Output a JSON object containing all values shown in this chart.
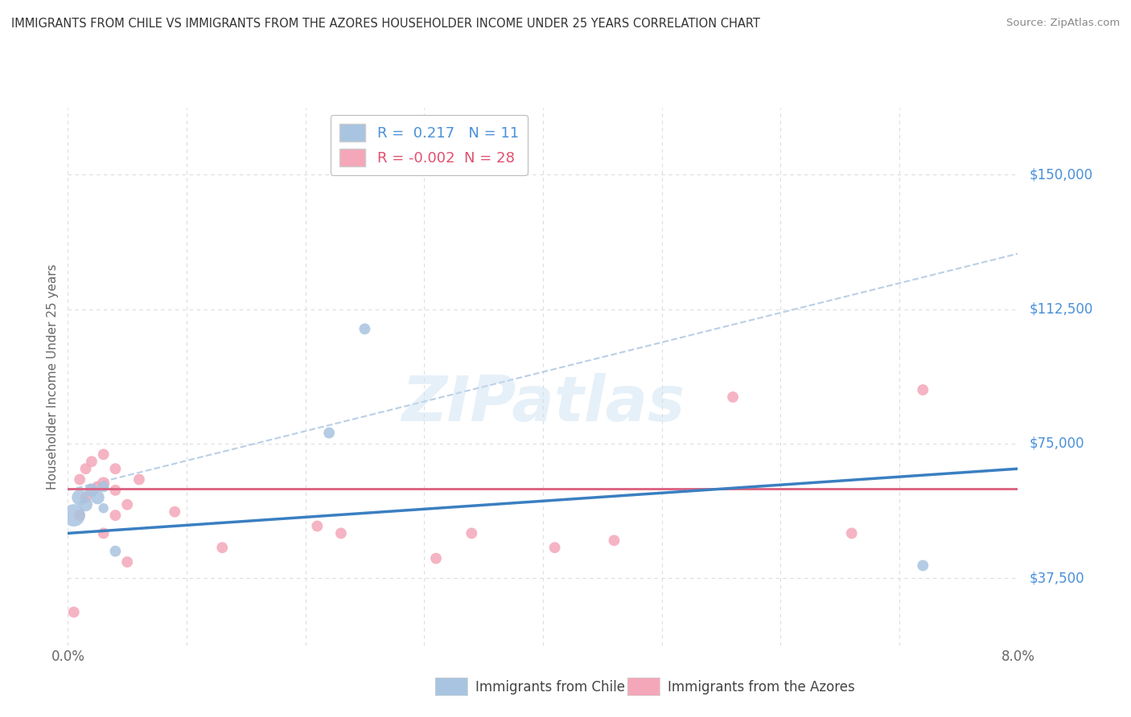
{
  "title": "IMMIGRANTS FROM CHILE VS IMMIGRANTS FROM THE AZORES HOUSEHOLDER INCOME UNDER 25 YEARS CORRELATION CHART",
  "source": "Source: ZipAtlas.com",
  "ylabel": "Householder Income Under 25 years",
  "xlim": [
    0.0,
    0.08
  ],
  "ylim": [
    18750,
    168750
  ],
  "yticks": [
    37500,
    75000,
    112500,
    150000
  ],
  "ytick_labels": [
    "$37,500",
    "$75,000",
    "$112,500",
    "$150,000"
  ],
  "xticks": [
    0.0,
    0.01,
    0.02,
    0.03,
    0.04,
    0.05,
    0.06,
    0.07,
    0.08
  ],
  "xtick_labels": [
    "0.0%",
    "",
    "",
    "",
    "",
    "",
    "",
    "",
    "8.0%"
  ],
  "r_chile": 0.217,
  "n_chile": 11,
  "r_azores": -0.002,
  "n_azores": 28,
  "color_chile": "#a8c4e0",
  "color_azores": "#f4a7b9",
  "line_chile_color": "#3a7fc1",
  "line_azores_color": "#d95f7f",
  "dash_color": "#a8c4e0",
  "background_color": "#ffffff",
  "grid_color": "#dddddd",
  "grid_dash": [
    4,
    4
  ],
  "watermark": "ZIPatlas",
  "chile_line_x": [
    0.0,
    0.08
  ],
  "chile_line_y": [
    50000,
    68000
  ],
  "azores_line_x": [
    0.0,
    0.08
  ],
  "azores_line_y": [
    62500,
    62500
  ],
  "dash_line_x": [
    0.0,
    0.08
  ],
  "dash_line_y": [
    62000,
    128000
  ],
  "chile_points_x": [
    0.0005,
    0.001,
    0.0015,
    0.002,
    0.0025,
    0.003,
    0.003,
    0.004,
    0.022,
    0.025,
    0.072
  ],
  "chile_points_y": [
    55000,
    60000,
    58000,
    62000,
    60000,
    63000,
    57000,
    45000,
    78000,
    107000,
    41000
  ],
  "chile_sizes": [
    400,
    200,
    150,
    150,
    150,
    100,
    80,
    100,
    100,
    100,
    100
  ],
  "azores_points_x": [
    0.0005,
    0.001,
    0.001,
    0.0015,
    0.0015,
    0.002,
    0.002,
    0.0025,
    0.003,
    0.003,
    0.003,
    0.004,
    0.004,
    0.004,
    0.005,
    0.005,
    0.006,
    0.009,
    0.013,
    0.021,
    0.023,
    0.031,
    0.034,
    0.041,
    0.046,
    0.056,
    0.066,
    0.072
  ],
  "azores_points_y": [
    28000,
    55000,
    65000,
    60000,
    68000,
    62000,
    70000,
    63000,
    64000,
    72000,
    50000,
    62000,
    55000,
    68000,
    58000,
    42000,
    65000,
    56000,
    46000,
    52000,
    50000,
    43000,
    50000,
    46000,
    48000,
    88000,
    50000,
    90000
  ],
  "azores_sizes": [
    100,
    100,
    100,
    100,
    100,
    100,
    100,
    100,
    120,
    100,
    100,
    100,
    100,
    100,
    100,
    100,
    100,
    100,
    100,
    100,
    100,
    100,
    100,
    100,
    100,
    100,
    100,
    100
  ],
  "legend_r_chile_text": "R =  0.217   N = 11",
  "legend_r_azores_text": "R = -0.002  N = 28",
  "legend_chile_color": "#4a90d9",
  "legend_azores_color": "#e05070",
  "bottom_label_chile": "Immigrants from Chile",
  "bottom_label_azores": "Immigrants from the Azores"
}
